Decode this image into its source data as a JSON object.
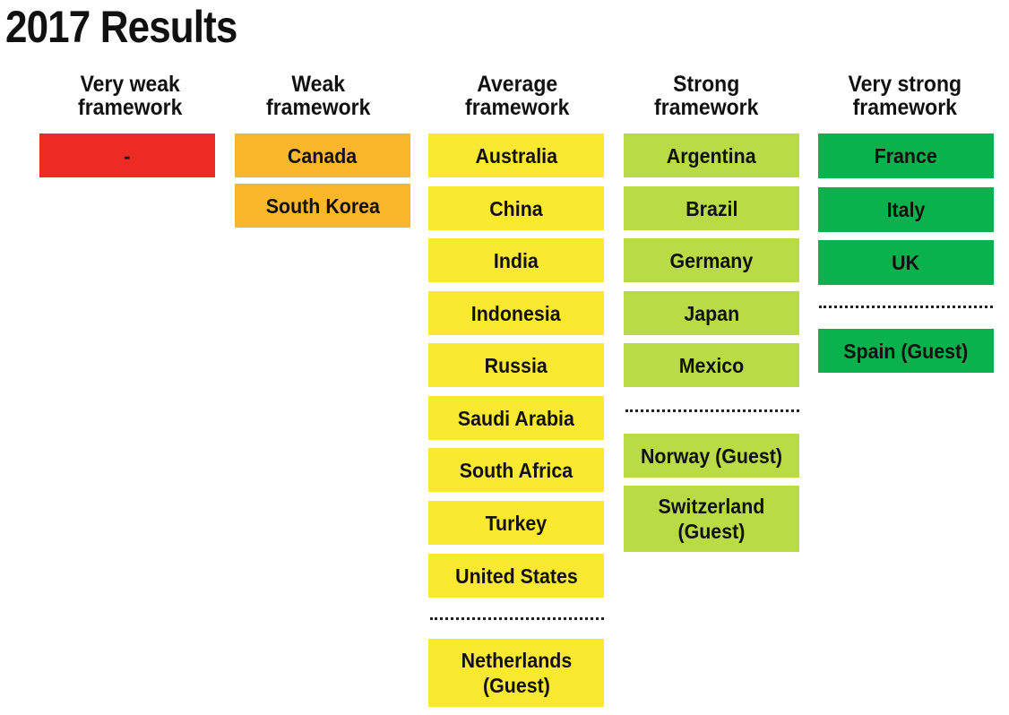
{
  "title": "2017 Results",
  "colors": {
    "very_weak": "#ee2a24",
    "weak": "#fbb62c",
    "average": "#fbe830",
    "strong": "#b9dc46",
    "very_strong": "#0ab14d"
  },
  "columns": [
    {
      "header": "Very weak\nframework",
      "color": "#ee2a24",
      "members": [
        "-"
      ],
      "guests": []
    },
    {
      "header": "Weak\nframework",
      "color": "#fbb62c",
      "members": [
        "Canada",
        "South Korea"
      ],
      "guests": []
    },
    {
      "header": "Average\nframework",
      "color": "#fbe830",
      "members": [
        "Australia",
        "China",
        "India",
        "Indonesia",
        "Russia",
        "Saudi Arabia",
        "South Africa",
        "Turkey",
        "United States"
      ],
      "guests": [
        "Netherlands\n(Guest)"
      ]
    },
    {
      "header": "Strong\nframework",
      "color": "#b9dc46",
      "members": [
        "Argentina",
        "Brazil",
        "Germany",
        "Japan",
        "Mexico"
      ],
      "guests": [
        "Norway (Guest)",
        "Switzerland\n(Guest)"
      ]
    },
    {
      "header": "Very strong\nframework",
      "color": "#0ab14d",
      "members": [
        "France",
        "Italy",
        "UK"
      ],
      "guests": [
        "Spain (Guest)"
      ]
    }
  ]
}
